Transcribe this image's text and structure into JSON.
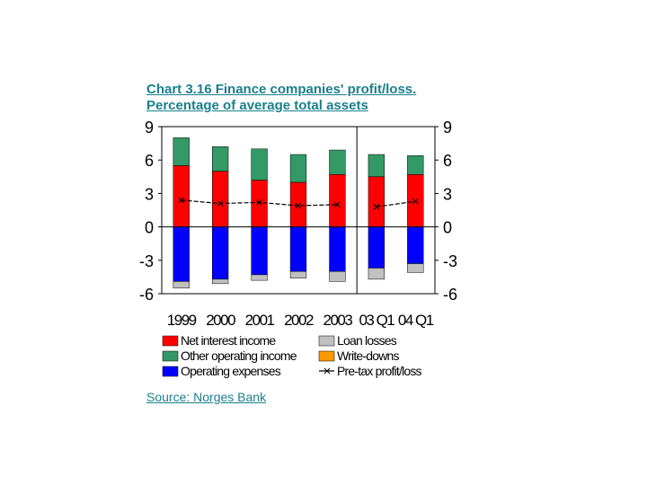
{
  "header": {
    "title_line1": "Chart 3.16 Finance companies' profit/loss.",
    "title_line2": "Percentage of average total assets"
  },
  "footer": {
    "source": "Source: Norges Bank"
  },
  "chart_data": {
    "type": "bar",
    "stacked": true,
    "categories": [
      "1999",
      "2000",
      "2001",
      "2002",
      "2003",
      "03 Q1",
      "04 Q1"
    ],
    "ylim": [
      -6,
      9
    ],
    "yticks": [
      9,
      6,
      3,
      0,
      -3,
      -6
    ],
    "ytick_labels": [
      "9",
      "6",
      "3",
      "0",
      "-3",
      "-6"
    ],
    "series": [
      {
        "name": "Net interest income",
        "color": "#ff0000",
        "values": [
          5.5,
          5.0,
          4.2,
          4.0,
          4.7,
          4.5,
          4.7
        ]
      },
      {
        "name": "Other operating income",
        "color": "#339966",
        "values": [
          2.5,
          2.2,
          2.8,
          2.5,
          2.2,
          2.0,
          1.7
        ]
      },
      {
        "name": "Operating expenses",
        "color": "#0000ff",
        "values": [
          -4.9,
          -4.7,
          -4.3,
          -4.0,
          -4.0,
          -3.7,
          -3.3
        ]
      },
      {
        "name": "Loan losses",
        "color": "#c0c0c0",
        "values": [
          -0.6,
          -0.4,
          -0.5,
          -0.6,
          -0.9,
          -1.0,
          -0.8
        ]
      },
      {
        "name": "Write-downs",
        "color": "#ff9900",
        "values": [
          0,
          0,
          0,
          0,
          0,
          0,
          0
        ]
      }
    ],
    "line_series": {
      "name": "Pre-tax profit/loss",
      "color": "#000000",
      "values": [
        2.4,
        2.1,
        2.2,
        1.9,
        2.0,
        1.8,
        2.3
      ]
    },
    "separator_after_category": 4,
    "legend_placement": "bottom",
    "legend": [
      {
        "name": "Net interest income",
        "type": "box",
        "color": "#ff0000"
      },
      {
        "name": "Other operating income",
        "type": "box",
        "color": "#339966"
      },
      {
        "name": "Operating expenses",
        "type": "box",
        "color": "#0000ff"
      },
      {
        "name": "Loan losses",
        "type": "box",
        "color": "#c0c0c0"
      },
      {
        "name": "Write-downs",
        "type": "box",
        "color": "#ff9900"
      },
      {
        "name": "Pre-tax profit/loss",
        "type": "line",
        "color": "#000000"
      }
    ]
  }
}
